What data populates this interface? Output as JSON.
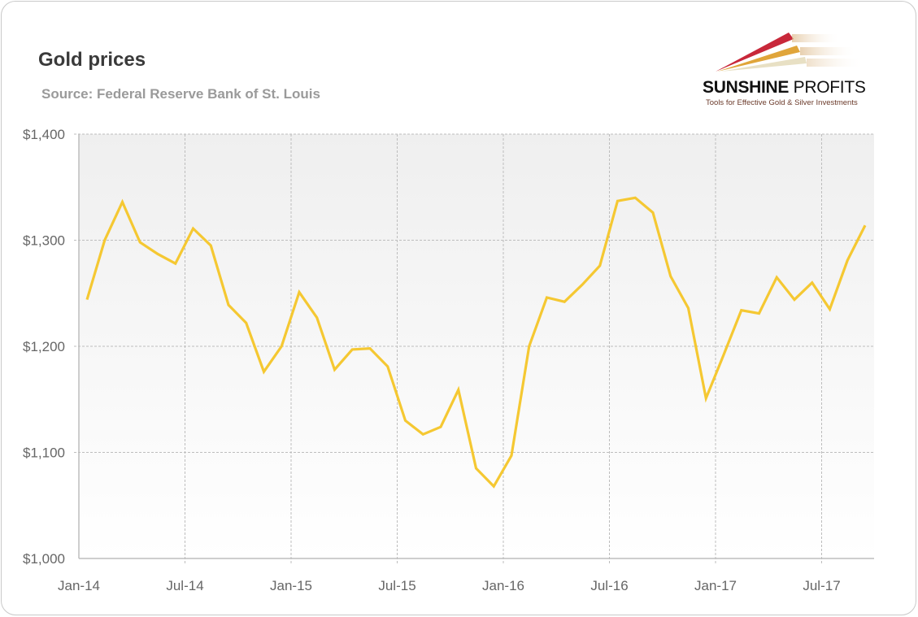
{
  "chart_data": {
    "type": "line",
    "title": "Gold prices",
    "subtitle": "Source: Federal Reserve Bank of St. Louis",
    "xlabel": "",
    "ylabel": "",
    "ylim": [
      1000,
      1400
    ],
    "yticks": [
      "$1,000",
      "$1,100",
      "$1,200",
      "$1,300",
      "$1,400"
    ],
    "ytick_values": [
      1000,
      1100,
      1200,
      1300,
      1400
    ],
    "xticks": [
      "Jan-14",
      "Jul-14",
      "Jan-15",
      "Jul-15",
      "Jan-16",
      "Jul-16",
      "Jan-17",
      "Jul-17"
    ],
    "grid": true,
    "line_color": "#f5c832",
    "x": [
      "2014-01",
      "2014-02",
      "2014-03",
      "2014-04",
      "2014-05",
      "2014-06",
      "2014-07",
      "2014-08",
      "2014-09",
      "2014-10",
      "2014-11",
      "2014-12",
      "2015-01",
      "2015-02",
      "2015-03",
      "2015-04",
      "2015-05",
      "2015-06",
      "2015-07",
      "2015-08",
      "2015-09",
      "2015-10",
      "2015-11",
      "2015-12",
      "2016-01",
      "2016-02",
      "2016-03",
      "2016-04",
      "2016-05",
      "2016-06",
      "2016-07",
      "2016-08",
      "2016-09",
      "2016-10",
      "2016-11",
      "2016-12",
      "2017-01",
      "2017-02",
      "2017-03",
      "2017-04",
      "2017-05",
      "2017-06",
      "2017-07",
      "2017-08",
      "2017-09"
    ],
    "series": [
      {
        "values": [
          1244,
          1300,
          1336,
          1298,
          1287,
          1278,
          1311,
          1295,
          1239,
          1222,
          1176,
          1200,
          1251,
          1227,
          1178,
          1197,
          1198,
          1181,
          1130,
          1117,
          1124,
          1159,
          1085,
          1068,
          1097,
          1200,
          1246,
          1242,
          1258,
          1276,
          1337,
          1340,
          1326,
          1266,
          1236,
          1151,
          1192,
          1234,
          1231,
          1265,
          1244,
          1260,
          1235,
          1281,
          1314
        ]
      }
    ]
  },
  "logo": {
    "name_bold": "SUNSHINE",
    "name_light": " PROFITS",
    "tagline": "Tools for Effective Gold & Silver Investments"
  }
}
